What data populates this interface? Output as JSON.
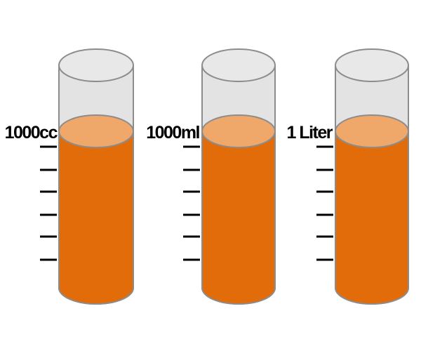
{
  "colors": {
    "liquid": "#e36c0a",
    "liquid_surface": "#f0a86a",
    "glass": "#e3e3e3",
    "glass_top": "#e8e8e8",
    "outline": "#8c8c8c",
    "text": "#000000",
    "tick": "#000000"
  },
  "cylinders": [
    {
      "label": "1000cc",
      "fill_fraction": 0.74,
      "ticks": 6
    },
    {
      "label": "1000ml",
      "fill_fraction": 0.74,
      "ticks": 6
    },
    {
      "label": "1 Liter",
      "fill_fraction": 0.74,
      "ticks": 6
    }
  ]
}
